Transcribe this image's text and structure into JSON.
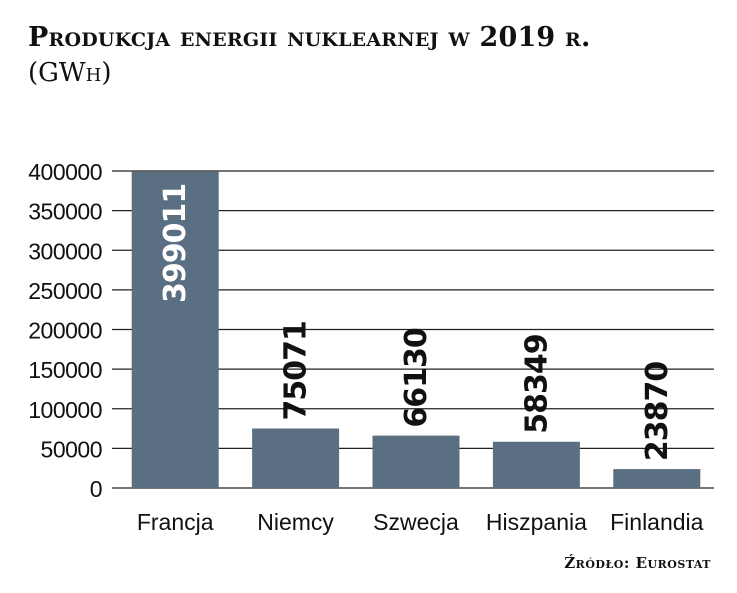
{
  "title": "Produkcja energii nuklearnej w 2019 r.",
  "subtitle": "(GWh)",
  "source": "Źródło: Eurostat",
  "colors": {
    "bar": "#5a6f82",
    "grid": "#222222",
    "text": "#111111",
    "label_on_bar": "#ffffff"
  },
  "chart_data": {
    "type": "bar",
    "title": "Produkcja energii nuklearnej w 2019 r.",
    "ylabel": "GWh",
    "xlabel": "",
    "categories": [
      "Francja",
      "Niemcy",
      "Szwecja",
      "Hiszpania",
      "Finlandia"
    ],
    "values": [
      399011,
      75071,
      66130,
      58349,
      23870
    ],
    "data_labels": [
      "399011",
      "75071",
      "66130",
      "58349",
      "23870"
    ],
    "ylim": [
      0,
      400000
    ],
    "yticks": [
      0,
      50000,
      100000,
      150000,
      200000,
      250000,
      300000,
      350000,
      400000
    ],
    "ytick_labels": [
      "0",
      "50000",
      "100000",
      "150000",
      "200000",
      "250000",
      "300000",
      "350000",
      "400000"
    ],
    "grid": true
  }
}
